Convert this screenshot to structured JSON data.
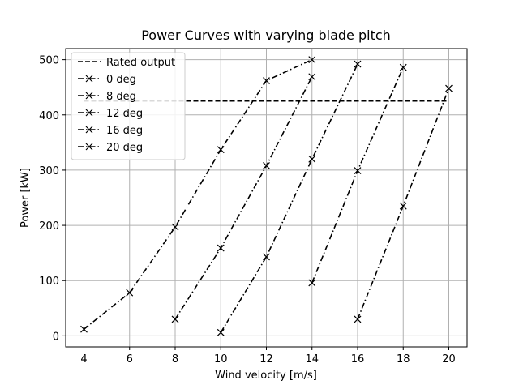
{
  "chart_data": {
    "type": "line",
    "title": "Power Curves with varying blade pitch",
    "xlabel": "Wind velocity [m/s]",
    "ylabel": "Power [kW]",
    "xlim": [
      3.2,
      20.8
    ],
    "ylim": [
      -20,
      520
    ],
    "xticks": [
      4,
      6,
      8,
      10,
      12,
      14,
      16,
      18,
      20
    ],
    "yticks": [
      0,
      100,
      200,
      300,
      400,
      500
    ],
    "grid": true,
    "legend_position": "top-left",
    "series": [
      {
        "name": "Rated output",
        "style": "dashed",
        "marker": "none",
        "x": [
          4,
          20
        ],
        "y": [
          425,
          425
        ]
      },
      {
        "name": "0 deg",
        "style": "dashdot",
        "marker": "x",
        "x": [
          4,
          6,
          8,
          10,
          12,
          14
        ],
        "y": [
          12,
          78,
          197,
          337,
          462,
          500
        ]
      },
      {
        "name": "8 deg",
        "style": "dashdot",
        "marker": "x",
        "x": [
          8,
          10,
          12,
          14
        ],
        "y": [
          30,
          159,
          308,
          469
        ]
      },
      {
        "name": "12 deg",
        "style": "dashdot",
        "marker": "x",
        "x": [
          10,
          12,
          14
        ],
        "y": [
          6,
          143,
          320
        ]
      },
      {
        "name": "16 deg",
        "style": "dashdot",
        "marker": "x",
        "x": [
          14,
          16
        ],
        "y": [
          96,
          299
        ]
      },
      {
        "name": "20 deg",
        "style": "dashdot",
        "marker": "x",
        "x": [
          16,
          18,
          20
        ],
        "y": [
          30,
          235,
          448
        ]
      }
    ],
    "extra_series_points": {
      "16 deg": {
        "x": [
          18
        ],
        "y": [
          486
        ]
      },
      "12 deg": {
        "x": [
          16
        ],
        "y": [
          492
        ]
      }
    }
  }
}
